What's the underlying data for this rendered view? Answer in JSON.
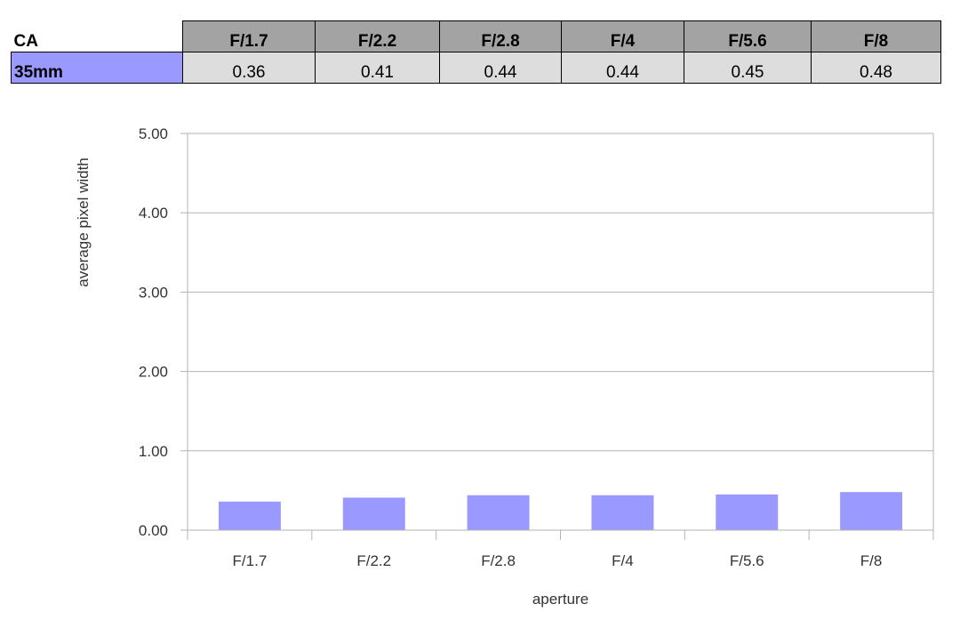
{
  "table": {
    "corner_label": "CA",
    "columns": [
      "F/1.7",
      "F/2.2",
      "F/2.8",
      "F/4",
      "F/5.6",
      "F/8"
    ],
    "rows": [
      {
        "label": "35mm",
        "values": [
          "0.36",
          "0.41",
          "0.44",
          "0.44",
          "0.45",
          "0.48"
        ]
      }
    ],
    "header_color": "#a3a3a3",
    "cell_color": "#dddddd",
    "row_label_color": "#9999ff"
  },
  "chart_data": {
    "type": "bar",
    "categories": [
      "F/1.7",
      "F/2.2",
      "F/2.8",
      "F/4",
      "F/5.6",
      "F/8"
    ],
    "values": [
      0.36,
      0.41,
      0.44,
      0.44,
      0.45,
      0.48
    ],
    "title": "",
    "xlabel": "aperture",
    "ylabel": "average pixel width",
    "ylim": [
      0,
      5
    ],
    "yticks": [
      "0.00",
      "1.00",
      "2.00",
      "3.00",
      "4.00",
      "5.00"
    ],
    "grid": true,
    "legend": "none",
    "bar_color": "#9999ff"
  }
}
